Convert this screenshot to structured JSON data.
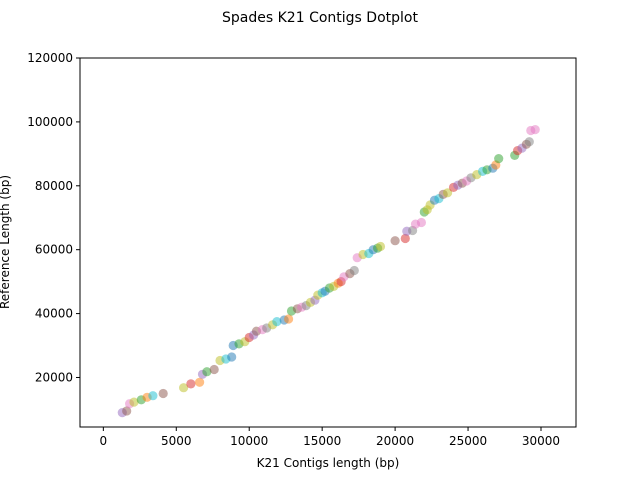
{
  "chart_data": {
    "type": "scatter",
    "title": "Spades K21 Contigs Dotplot",
    "xlabel": "K21 Contigs length (bp)",
    "ylabel": "Reference Length (bp)",
    "xlim": [
      -1600,
      32400
    ],
    "ylim": [
      4500,
      120000
    ],
    "xticks": [
      0,
      5000,
      10000,
      15000,
      20000,
      25000,
      30000
    ],
    "yticks": [
      20000,
      40000,
      60000,
      80000,
      100000,
      120000
    ],
    "xtick_labels": [
      "0",
      "5000",
      "10000",
      "15000",
      "20000",
      "25000",
      "30000"
    ],
    "ytick_labels": [
      "20000",
      "40000",
      "60000",
      "80000",
      "100000",
      "120000"
    ],
    "grid": false,
    "marker_alpha": 0.5,
    "palette": [
      "#1f77b4",
      "#ff7f0e",
      "#2ca02c",
      "#d62728",
      "#9467bd",
      "#8c564b",
      "#e377c2",
      "#7f7f7f",
      "#bcbd22",
      "#17becf"
    ],
    "points": [
      {
        "x": 1300,
        "y": 9000,
        "c": 4
      },
      {
        "x": 1600,
        "y": 9500,
        "c": 5
      },
      {
        "x": 1800,
        "y": 11800,
        "c": 6
      },
      {
        "x": 2100,
        "y": 12300,
        "c": 8
      },
      {
        "x": 2600,
        "y": 13000,
        "c": 2
      },
      {
        "x": 3000,
        "y": 13800,
        "c": 1
      },
      {
        "x": 3400,
        "y": 14300,
        "c": 9
      },
      {
        "x": 4100,
        "y": 15000,
        "c": 5
      },
      {
        "x": 5500,
        "y": 16800,
        "c": 8
      },
      {
        "x": 6000,
        "y": 18000,
        "c": 3
      },
      {
        "x": 6600,
        "y": 18500,
        "c": 1
      },
      {
        "x": 6800,
        "y": 21000,
        "c": 4
      },
      {
        "x": 7100,
        "y": 21800,
        "c": 2
      },
      {
        "x": 7600,
        "y": 22500,
        "c": 5
      },
      {
        "x": 8000,
        "y": 25300,
        "c": 8
      },
      {
        "x": 8400,
        "y": 25800,
        "c": 9
      },
      {
        "x": 8800,
        "y": 26400,
        "c": 0
      },
      {
        "x": 8900,
        "y": 30000,
        "c": 0
      },
      {
        "x": 9300,
        "y": 30500,
        "c": 2
      },
      {
        "x": 9700,
        "y": 31200,
        "c": 8
      },
      {
        "x": 10000,
        "y": 32500,
        "c": 3
      },
      {
        "x": 10300,
        "y": 33300,
        "c": 4
      },
      {
        "x": 10500,
        "y": 34500,
        "c": 5
      },
      {
        "x": 10900,
        "y": 35000,
        "c": 6
      },
      {
        "x": 11200,
        "y": 35500,
        "c": 7
      },
      {
        "x": 11600,
        "y": 36500,
        "c": 8
      },
      {
        "x": 11900,
        "y": 37500,
        "c": 9
      },
      {
        "x": 12400,
        "y": 38000,
        "c": 0
      },
      {
        "x": 12700,
        "y": 38300,
        "c": 1
      },
      {
        "x": 12900,
        "y": 40800,
        "c": 2
      },
      {
        "x": 13300,
        "y": 41500,
        "c": 5
      },
      {
        "x": 13600,
        "y": 42000,
        "c": 6
      },
      {
        "x": 13900,
        "y": 42500,
        "c": 7
      },
      {
        "x": 14200,
        "y": 43500,
        "c": 8
      },
      {
        "x": 14500,
        "y": 44200,
        "c": 4
      },
      {
        "x": 14700,
        "y": 45800,
        "c": 8
      },
      {
        "x": 15000,
        "y": 46500,
        "c": 9
      },
      {
        "x": 15200,
        "y": 47000,
        "c": 0
      },
      {
        "x": 15500,
        "y": 48000,
        "c": 2
      },
      {
        "x": 15800,
        "y": 48500,
        "c": 8
      },
      {
        "x": 16100,
        "y": 49500,
        "c": 1
      },
      {
        "x": 16300,
        "y": 50000,
        "c": 3
      },
      {
        "x": 16500,
        "y": 51500,
        "c": 6
      },
      {
        "x": 16900,
        "y": 52500,
        "c": 5
      },
      {
        "x": 17200,
        "y": 53500,
        "c": 7
      },
      {
        "x": 17400,
        "y": 57500,
        "c": 6
      },
      {
        "x": 17800,
        "y": 58500,
        "c": 8
      },
      {
        "x": 18200,
        "y": 58800,
        "c": 9
      },
      {
        "x": 18500,
        "y": 60000,
        "c": 0
      },
      {
        "x": 18800,
        "y": 60500,
        "c": 2
      },
      {
        "x": 19000,
        "y": 61000,
        "c": 8
      },
      {
        "x": 20000,
        "y": 62800,
        "c": 5
      },
      {
        "x": 20700,
        "y": 63500,
        "c": 3
      },
      {
        "x": 20800,
        "y": 65800,
        "c": 4
      },
      {
        "x": 21200,
        "y": 66000,
        "c": 7
      },
      {
        "x": 21400,
        "y": 68000,
        "c": 6
      },
      {
        "x": 21800,
        "y": 68500,
        "c": 6
      },
      {
        "x": 22000,
        "y": 71800,
        "c": 2
      },
      {
        "x": 22200,
        "y": 72500,
        "c": 8
      },
      {
        "x": 22400,
        "y": 74000,
        "c": 8
      },
      {
        "x": 22700,
        "y": 75500,
        "c": 0
      },
      {
        "x": 23000,
        "y": 76000,
        "c": 9
      },
      {
        "x": 23300,
        "y": 77300,
        "c": 5
      },
      {
        "x": 23600,
        "y": 77800,
        "c": 8
      },
      {
        "x": 24000,
        "y": 79500,
        "c": 3
      },
      {
        "x": 24300,
        "y": 80200,
        "c": 4
      },
      {
        "x": 24600,
        "y": 80800,
        "c": 5
      },
      {
        "x": 24900,
        "y": 81500,
        "c": 6
      },
      {
        "x": 25200,
        "y": 82500,
        "c": 7
      },
      {
        "x": 25600,
        "y": 83500,
        "c": 8
      },
      {
        "x": 26000,
        "y": 84500,
        "c": 9
      },
      {
        "x": 26300,
        "y": 85000,
        "c": 2
      },
      {
        "x": 26700,
        "y": 85500,
        "c": 0
      },
      {
        "x": 26900,
        "y": 86500,
        "c": 1
      },
      {
        "x": 27100,
        "y": 88500,
        "c": 2
      },
      {
        "x": 28200,
        "y": 89500,
        "c": 2
      },
      {
        "x": 28400,
        "y": 91000,
        "c": 3
      },
      {
        "x": 28700,
        "y": 91800,
        "c": 4
      },
      {
        "x": 29000,
        "y": 93000,
        "c": 5
      },
      {
        "x": 29200,
        "y": 93800,
        "c": 7
      },
      {
        "x": 29300,
        "y": 97300,
        "c": 6
      },
      {
        "x": 29600,
        "y": 97600,
        "c": 6
      }
    ]
  }
}
